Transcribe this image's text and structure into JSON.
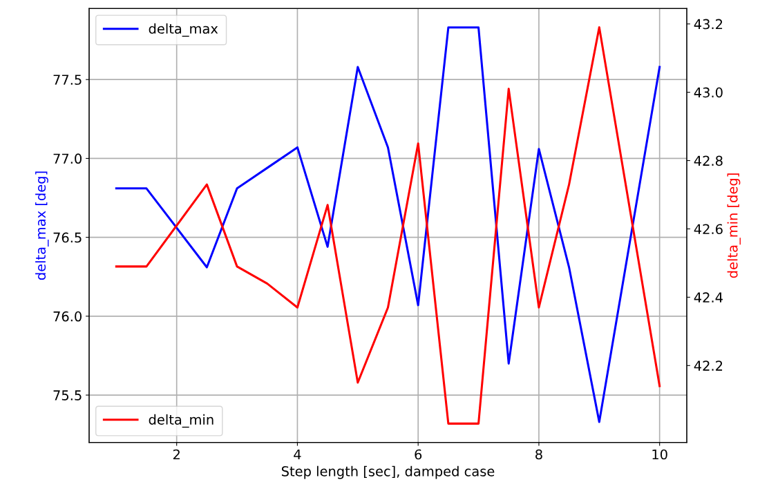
{
  "chart_data": {
    "type": "line",
    "xlabel": "Step length [sec], damped case",
    "ylabel": "delta_max [deg]",
    "y2label": "delta_min [deg]",
    "x": [
      1,
      1.5,
      2.5,
      3,
      3.5,
      4,
      4.5,
      5,
      5.5,
      6,
      6.5,
      7,
      7.5,
      8,
      8.5,
      9,
      10
    ],
    "series": [
      {
        "name": "delta_max",
        "color": "#0000ff",
        "axis": "y",
        "values": [
          76.81,
          76.81,
          76.31,
          76.81,
          76.94,
          77.07,
          76.44,
          77.58,
          77.07,
          76.07,
          77.83,
          77.83,
          75.7,
          77.06,
          76.31,
          75.33,
          77.58
        ]
      },
      {
        "name": "delta_min",
        "color": "#ff0000",
        "axis": "y2",
        "values": [
          42.49,
          42.49,
          42.73,
          42.49,
          42.44,
          42.37,
          42.67,
          42.15,
          42.37,
          42.85,
          42.03,
          42.03,
          43.01,
          42.37,
          42.73,
          43.19,
          42.14
        ]
      }
    ],
    "xlim": [
      0.55,
      10.45
    ],
    "xticks": [
      2,
      4,
      6,
      8,
      10
    ],
    "ylim": [
      75.2,
      77.95
    ],
    "yticks": [
      75.5,
      {
        "value": 76,
        "label": "76.0"
      },
      76.5,
      {
        "value": 77,
        "label": "77.0"
      },
      77.5
    ],
    "y2lim": [
      41.975,
      43.245
    ],
    "y2ticks": [
      42.2,
      42.4,
      42.6,
      42.8,
      {
        "value": 43,
        "label": "43.0"
      },
      43.2
    ],
    "legend": "left",
    "grid": true,
    "marker": "none",
    "line_style": "solid"
  }
}
